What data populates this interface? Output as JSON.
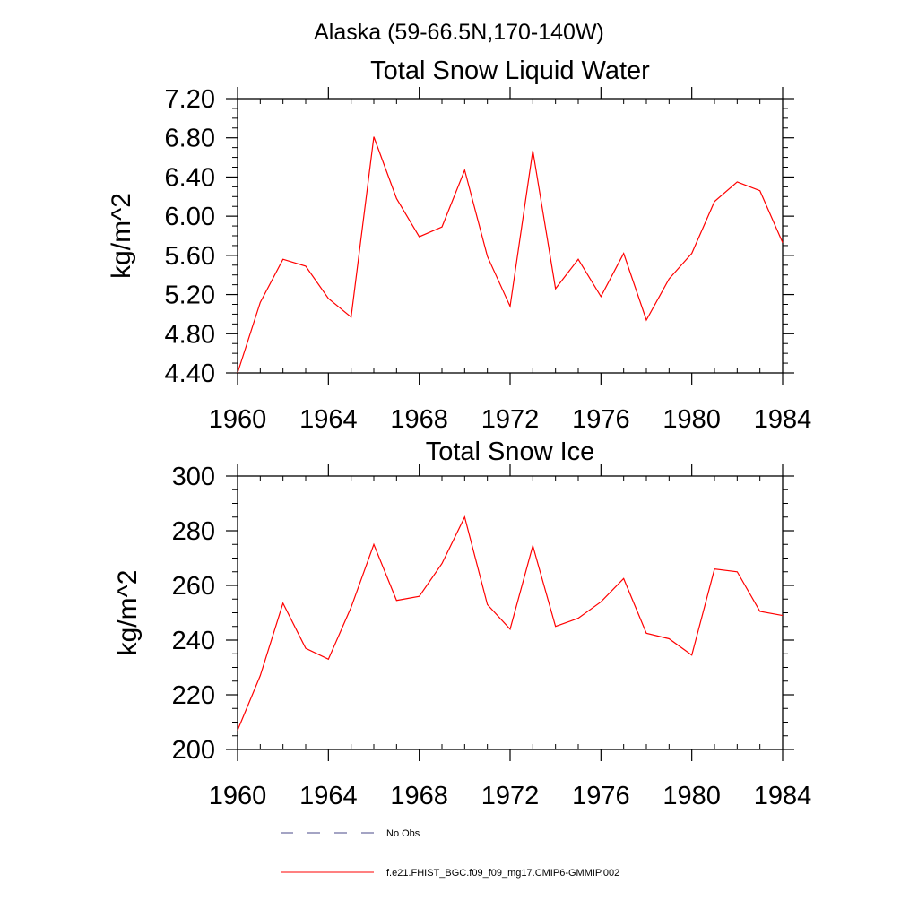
{
  "figure": {
    "suptitle": "Alaska (59-66.5N,170-140W)"
  },
  "chart_data": [
    {
      "type": "line",
      "title": "Total Snow Liquid Water",
      "xlabel": "",
      "ylabel": "kg/m^2",
      "xlim": [
        1960,
        1984
      ],
      "ylim": [
        4.4,
        7.2
      ],
      "x_ticks": [
        1960,
        1964,
        1968,
        1972,
        1976,
        1980,
        1984
      ],
      "y_ticks": [
        4.4,
        4.8,
        5.2,
        5.6,
        6.0,
        6.4,
        6.8,
        7.2
      ],
      "y_tick_labels": [
        "4.40",
        "4.80",
        "5.20",
        "5.60",
        "6.00",
        "6.40",
        "6.80",
        "7.20"
      ],
      "x_minor_step": 1,
      "y_minor_step": 0.1,
      "grid": false,
      "series": [
        {
          "name": "f.e21.FHIST_BGC.f09_f09_mg17.CMIP6-GMMIP.002",
          "color": "#ff0000",
          "x": [
            1960,
            1961,
            1962,
            1963,
            1964,
            1965,
            1966,
            1967,
            1968,
            1969,
            1970,
            1971,
            1972,
            1973,
            1974,
            1975,
            1976,
            1977,
            1978,
            1979,
            1980,
            1981,
            1982,
            1983,
            1984
          ],
          "values": [
            4.4,
            5.12,
            5.56,
            5.49,
            5.16,
            4.97,
            6.81,
            6.18,
            5.79,
            5.89,
            6.47,
            5.59,
            5.08,
            6.67,
            5.26,
            5.56,
            5.18,
            5.62,
            4.94,
            5.36,
            5.62,
            6.15,
            6.35,
            6.26,
            5.73
          ]
        }
      ]
    },
    {
      "type": "line",
      "title": "Total Snow Ice",
      "xlabel": "",
      "ylabel": "kg/m^2",
      "xlim": [
        1960,
        1984
      ],
      "ylim": [
        200,
        300
      ],
      "x_ticks": [
        1960,
        1964,
        1968,
        1972,
        1976,
        1980,
        1984
      ],
      "y_ticks": [
        200,
        220,
        240,
        260,
        280,
        300
      ],
      "y_tick_labels": [
        "200",
        "220",
        "240",
        "260",
        "280",
        "300"
      ],
      "x_minor_step": 1,
      "y_minor_step": 5,
      "grid": false,
      "series": [
        {
          "name": "f.e21.FHIST_BGC.f09_f09_mg17.CMIP6-GMMIP.002",
          "color": "#ff0000",
          "x": [
            1960,
            1961,
            1962,
            1963,
            1964,
            1965,
            1966,
            1967,
            1968,
            1969,
            1970,
            1971,
            1972,
            1973,
            1974,
            1975,
            1976,
            1977,
            1978,
            1979,
            1980,
            1981,
            1982,
            1983,
            1984
          ],
          "values": [
            207,
            227,
            253.5,
            237,
            233,
            252,
            275,
            254.5,
            256,
            268,
            285,
            253,
            244,
            274.5,
            245,
            248,
            254,
            262.5,
            242.5,
            240.5,
            234.5,
            266,
            265,
            250.5,
            249
          ]
        }
      ]
    }
  ],
  "legend": {
    "placement": "bottom-center",
    "entries": [
      {
        "label": "No Obs",
        "color": "#4a4a8a",
        "style": "dashed"
      },
      {
        "label": "f.e21.FHIST_BGC.f09_f09_mg17.CMIP6-GMMIP.002",
        "color": "#ff0000",
        "style": "solid"
      }
    ]
  }
}
